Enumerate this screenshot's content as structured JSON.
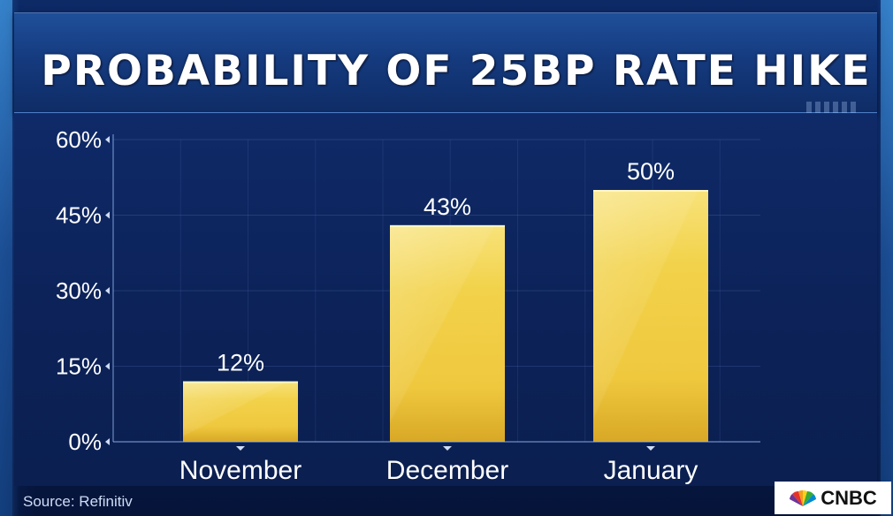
{
  "chart_data": {
    "type": "bar",
    "title": "PROBABILITY OF 25BP RATE HIKE",
    "categories": [
      "November",
      "December",
      "January"
    ],
    "values": [
      12,
      43,
      50
    ],
    "data_labels": [
      "12%",
      "43%",
      "50%"
    ],
    "ylim": [
      0,
      60
    ],
    "yticks": [
      0,
      15,
      30,
      45,
      60
    ],
    "ytick_labels": [
      "0%",
      "15%",
      "30%",
      "45%",
      "60%"
    ],
    "xlabel": "",
    "ylabel": "",
    "grid": true,
    "legend": "none",
    "bar_color": "#f2d24a"
  },
  "source": "Source: Refinitiv",
  "logo": {
    "text": "CNBC",
    "icon": "peacock-icon"
  },
  "colors": {
    "background": "#07163c",
    "title_panel": "#14397c",
    "bar": "#f2d24a",
    "text": "#ffffff"
  }
}
